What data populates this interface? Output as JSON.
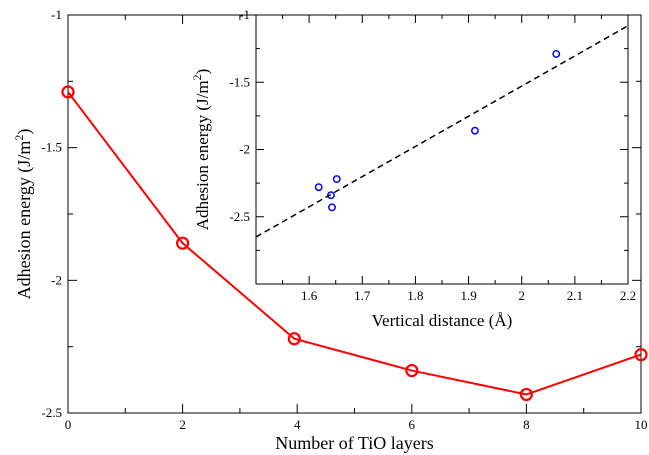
{
  "chart_data": [
    {
      "type": "line",
      "xlabel": "Number of TiO layers",
      "ylabel": "Adhesion energy (J/m2)",
      "ylabel_main": "Adhesion energy (J/m",
      "ylabel_sup": "2",
      "ylabel_tail": ")",
      "xlim": [
        0,
        10
      ],
      "ylim": [
        -2.5,
        -1
      ],
      "xticks": [
        0,
        2,
        4,
        6,
        8,
        10
      ],
      "yticks": [
        -2.5,
        -2,
        -1.5,
        -1
      ],
      "xtick_labels": [
        "0",
        "2",
        "4",
        "6",
        "8",
        "10"
      ],
      "ytick_labels": [
        "-2.5",
        "-2",
        "-1.5",
        "-1"
      ],
      "grid": false,
      "series": [
        {
          "color": "#ff0000",
          "marker": "open-circle",
          "x": [
            0,
            2,
            3.95,
            6,
            8,
            10
          ],
          "y": [
            -1.29,
            -1.86,
            -2.22,
            -2.34,
            -2.43,
            -2.28
          ]
        }
      ]
    },
    {
      "type": "scatter",
      "xlabel": "Vertical distance (Å)",
      "ylabel": "Adhesion energy (J/m2)",
      "ylabel_main": "Adhesion energy (J/m",
      "ylabel_sup": "2",
      "ylabel_tail": ")",
      "xlim": [
        1.5,
        2.2
      ],
      "ylim": [
        -3,
        -1
      ],
      "xticks": [
        1.6,
        1.7,
        1.8,
        1.9,
        2.0,
        2.1,
        2.2
      ],
      "yticks": [
        -2.5,
        -2,
        -1.5,
        -1
      ],
      "xtick_labels": [
        "1.6",
        "1.7",
        "1.8",
        "1.9",
        "2",
        "2.1",
        "2.2"
      ],
      "ytick_labels": [
        "-2.5",
        "-2",
        "-1.5",
        "-1"
      ],
      "grid": false,
      "series": [
        {
          "color": "#0000ff",
          "marker": "open-circle",
          "x": [
            1.618,
            1.652,
            1.641,
            1.643,
            1.912,
            2.065
          ],
          "y": [
            -2.28,
            -2.22,
            -2.34,
            -2.43,
            -1.86,
            -1.29
          ]
        }
      ],
      "fit_line": {
        "color": "#000000",
        "style": "dashed",
        "x": [
          1.5,
          2.2
        ],
        "y": [
          -2.65,
          -1.08
        ]
      }
    }
  ]
}
